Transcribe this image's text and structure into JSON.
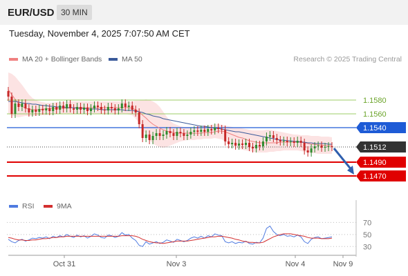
{
  "header": {
    "pair": "EUR/USD",
    "timeframe": "30 MIN",
    "datetime": "Tuesday, November 4, 2025 7:07:50 AM CET"
  },
  "legend": {
    "ma20": "MA 20 + Bollinger Bands",
    "ma50": "MA 50",
    "rsi": "RSI",
    "ma9": "9MA",
    "copyright": "Research © 2025 Trading Central"
  },
  "colors": {
    "ma20": "#f08080",
    "ma50": "#3a5a9a",
    "band": "#fbd9d9",
    "up": "#2e8b2e",
    "down": "#c62828",
    "resistance": "#9ccc65",
    "pivot": "#1e5bd6",
    "support": "#e00000",
    "rsi": "#4f7be0",
    "rsi_ma": "#d32f2f",
    "arrow": "#2f5fae"
  },
  "chart_data": [
    {
      "type": "line",
      "title": "",
      "price_range": [
        1.1445,
        1.161
      ],
      "x_ticks": [
        "Oct 31",
        "Nov 3",
        "Nov 4",
        "Nov 9"
      ],
      "levels": {
        "resistance": [
          {
            "label": "1.1580",
            "value": 1.158
          },
          {
            "label": "1.1560",
            "value": 1.156
          }
        ],
        "pivot": {
          "label": "1.1540",
          "value": 1.154
        },
        "current": {
          "label": "1.1512",
          "value": 1.1512
        },
        "support": [
          {
            "label": "1.1490",
            "value": 1.149
          },
          {
            "label": "1.1470",
            "value": 1.147
          }
        ]
      },
      "series": [
        {
          "name": "price",
          "values": [
            1.1585,
            1.156,
            1.1575,
            1.157,
            1.1575,
            1.1568,
            1.1562,
            1.1566,
            1.1563,
            1.1567,
            1.1565,
            1.1568,
            1.1564,
            1.157,
            1.1566,
            1.1572,
            1.1568,
            1.1574,
            1.1568,
            1.1566,
            1.157,
            1.1566,
            1.1569,
            1.1564,
            1.1568,
            1.1572,
            1.157,
            1.1566,
            1.1565,
            1.157,
            1.1568,
            1.1565,
            1.1568,
            1.1575,
            1.157,
            1.1572,
            1.1566,
            1.1562,
            1.1545,
            1.1525,
            1.153,
            1.1522,
            1.1528,
            1.1532,
            1.1528,
            1.153,
            1.1535,
            1.1532,
            1.1528,
            1.1534,
            1.1532,
            1.1528,
            1.153,
            1.1534,
            1.1536,
            1.1534,
            1.1537,
            1.1534,
            1.1538,
            1.1536,
            1.154,
            1.1538,
            1.1537,
            1.152,
            1.1516,
            1.1518,
            1.1514,
            1.1517,
            1.1515,
            1.1518,
            1.1512,
            1.151,
            1.1515,
            1.1513,
            1.152,
            1.1527,
            1.1529,
            1.1525,
            1.1522,
            1.152,
            1.1521,
            1.1519,
            1.152,
            1.1518,
            1.1521,
            1.1518,
            1.1507,
            1.1504,
            1.151,
            1.1513,
            1.1514,
            1.1511,
            1.1512,
            1.1513,
            1.1512
          ]
        },
        {
          "name": "MA 20",
          "values": [
            1.1595,
            1.1588,
            1.1581,
            1.1575,
            1.1571,
            1.1568,
            1.1567,
            1.1566,
            1.1566,
            1.1566,
            1.1567,
            1.1567,
            1.1568,
            1.1568,
            1.1568,
            1.1568,
            1.1568,
            1.1568,
            1.1569,
            1.1569,
            1.1569,
            1.1569,
            1.1569,
            1.1569,
            1.1569,
            1.1569,
            1.1569,
            1.1569,
            1.1569,
            1.1569,
            1.1569,
            1.1569,
            1.1569,
            1.1569,
            1.1569,
            1.1569,
            1.1568,
            1.1566,
            1.1563,
            1.1558,
            1.1554,
            1.1549,
            1.1545,
            1.1542,
            1.1539,
            1.1537,
            1.1535,
            1.1534,
            1.1533,
            1.1532,
            1.1532,
            1.1532,
            1.1532,
            1.1532,
            1.1532,
            1.1532,
            1.1532,
            1.1533,
            1.1533,
            1.1533,
            1.1534,
            1.1535,
            1.1535,
            1.1534,
            1.1532,
            1.153,
            1.1528,
            1.1526,
            1.1525,
            1.1523,
            1.1521,
            1.152,
            1.1519,
            1.1518,
            1.1518,
            1.1518,
            1.1518,
            1.1518,
            1.1518,
            1.1519,
            1.1519,
            1.1519,
            1.1519,
            1.1519,
            1.1519,
            1.1519,
            1.1518,
            1.1517,
            1.1516,
            1.1516,
            1.1515,
            1.1515,
            1.1514,
            1.1514,
            1.1514
          ]
        },
        {
          "name": "MA 50",
          "values": [
            1.1578,
            1.1578,
            1.1578,
            1.1577,
            1.1576,
            1.1575,
            1.1575,
            1.1574,
            1.1574,
            1.1573,
            1.1572,
            1.1572,
            1.1571,
            1.1571,
            1.157,
            1.157,
            1.157,
            1.1569,
            1.1569,
            1.1569,
            1.1568,
            1.1568,
            1.1568,
            1.1567,
            1.1567,
            1.1567,
            1.1567,
            1.1566,
            1.1566,
            1.1566,
            1.1566,
            1.1566,
            1.1566,
            1.1566,
            1.1565,
            1.1565,
            1.1565,
            1.1564,
            1.1563,
            1.1562,
            1.156,
            1.1559,
            1.1557,
            1.1556,
            1.1555,
            1.1553,
            1.1552,
            1.1551,
            1.155,
            1.1549,
            1.1548,
            1.1547,
            1.1546,
            1.1545,
            1.1544,
            1.1543,
            1.1542,
            1.1542,
            1.1541,
            1.154,
            1.1539,
            1.1539,
            1.1538,
            1.1537,
            1.1536,
            1.1535,
            1.1534,
            1.1534,
            1.1533,
            1.1532,
            1.1531,
            1.153,
            1.1529,
            1.1528,
            1.1527,
            1.1526,
            1.1525,
            1.1524,
            1.1523,
            1.1522,
            1.1522,
            1.1521,
            1.1521,
            1.152,
            1.152,
            1.1519,
            1.1519,
            1.1518,
            1.1518,
            1.1517,
            1.1517,
            1.1517,
            1.1517,
            1.1516,
            1.1516
          ]
        },
        {
          "name": "Bollinger upper",
          "values": [
            1.162,
            1.1618,
            1.1614,
            1.1608,
            1.1602,
            1.1595,
            1.1588,
            1.1583,
            1.158,
            1.1578,
            1.1577,
            1.1576,
            1.1576,
            1.1576,
            1.1577,
            1.1577,
            1.1577,
            1.1578,
            1.1578,
            1.1578,
            1.1578,
            1.1578,
            1.1578,
            1.1578,
            1.1578,
            1.1578,
            1.1578,
            1.1578,
            1.1578,
            1.1578,
            1.1578,
            1.1578,
            1.1578,
            1.1578,
            1.1578,
            1.1578,
            1.1578,
            1.1579,
            1.1579,
            1.158,
            1.1581,
            1.158,
            1.1578,
            1.1575,
            1.157,
            1.1563,
            1.1556,
            1.155,
            1.1546,
            1.1544,
            1.1542,
            1.1541,
            1.1541,
            1.1541,
            1.1541,
            1.1542,
            1.1542,
            1.1543,
            1.1543,
            1.1544,
            1.1545,
            1.1545,
            1.1544,
            1.1543,
            1.1542,
            1.1541,
            1.154,
            1.154,
            1.1539,
            1.1538,
            1.1537,
            1.1536,
            1.1536,
            1.1536,
            1.1536,
            1.1537,
            1.1537,
            1.1536,
            1.1535,
            1.1534,
            1.1533,
            1.1532,
            1.1531,
            1.153,
            1.153,
            1.1529,
            1.1529,
            1.1529,
            1.1528,
            1.1528,
            1.1528,
            1.1527,
            1.1527,
            1.1527,
            1.1526
          ]
        },
        {
          "name": "Bollinger lower",
          "values": [
            1.156,
            1.1558,
            1.1556,
            1.1555,
            1.1556,
            1.1557,
            1.1557,
            1.1557,
            1.1557,
            1.1558,
            1.1558,
            1.1558,
            1.1559,
            1.1559,
            1.156,
            1.156,
            1.156,
            1.156,
            1.156,
            1.156,
            1.156,
            1.156,
            1.156,
            1.156,
            1.156,
            1.156,
            1.156,
            1.156,
            1.156,
            1.156,
            1.156,
            1.156,
            1.156,
            1.156,
            1.156,
            1.1559,
            1.1558,
            1.1553,
            1.1547,
            1.1538,
            1.1529,
            1.1522,
            1.1517,
            1.1514,
            1.1512,
            1.1511,
            1.1512,
            1.1514,
            1.1516,
            1.1518,
            1.152,
            1.1521,
            1.1522,
            1.1522,
            1.1522,
            1.1523,
            1.1523,
            1.1524,
            1.1524,
            1.1524,
            1.1525,
            1.1524,
            1.1523,
            1.152,
            1.1517,
            1.1514,
            1.1511,
            1.1509,
            1.1508,
            1.1507,
            1.1506,
            1.1505,
            1.1504,
            1.1504,
            1.1504,
            1.1504,
            1.1505,
            1.1505,
            1.1506,
            1.1506,
            1.1507,
            1.1507,
            1.1507,
            1.1507,
            1.1507,
            1.1506,
            1.1505,
            1.1504,
            1.1503,
            1.1503,
            1.1502,
            1.1502,
            1.1502,
            1.1502,
            1.1502
          ]
        }
      ]
    },
    {
      "type": "line",
      "title": "",
      "ylim": [
        20,
        75
      ],
      "y_ticks": [
        "70",
        "50",
        "30"
      ],
      "series": [
        {
          "name": "RSI",
          "values": [
            42,
            38,
            36,
            40,
            42,
            39,
            41,
            44,
            43,
            45,
            44,
            46,
            43,
            47,
            45,
            48,
            46,
            50,
            47,
            45,
            49,
            46,
            48,
            44,
            47,
            51,
            49,
            45,
            44,
            49,
            48,
            45,
            47,
            53,
            49,
            50,
            44,
            40,
            32,
            30,
            38,
            34,
            36,
            38,
            35,
            37,
            41,
            39,
            37,
            42,
            40,
            38,
            40,
            44,
            46,
            44,
            47,
            44,
            48,
            46,
            51,
            49,
            48,
            38,
            36,
            38,
            35,
            37,
            36,
            39,
            35,
            34,
            37,
            36,
            44,
            60,
            64,
            55,
            50,
            48,
            50,
            47,
            48,
            46,
            49,
            46,
            38,
            35,
            42,
            45,
            46,
            43,
            44,
            45,
            46
          ]
        },
        {
          "name": "9MA",
          "values": [
            45,
            44,
            42,
            41,
            41,
            40,
            40,
            41,
            41,
            42,
            43,
            43,
            44,
            45,
            45,
            46,
            46,
            47,
            47,
            47,
            47,
            47,
            47,
            47,
            47,
            47,
            47,
            47,
            47,
            47,
            47,
            47,
            47,
            48,
            48,
            48,
            48,
            47,
            45,
            42,
            40,
            38,
            37,
            36,
            36,
            35,
            36,
            37,
            38,
            39,
            39,
            39,
            39,
            40,
            41,
            42,
            43,
            44,
            45,
            46,
            46,
            47,
            47,
            46,
            45,
            44,
            42,
            41,
            39,
            38,
            37,
            37,
            36,
            36,
            37,
            40,
            43,
            46,
            48,
            50,
            51,
            51,
            51,
            50,
            49,
            48,
            47,
            45,
            44,
            44,
            44,
            43,
            43,
            43,
            44
          ]
        }
      ]
    }
  ]
}
